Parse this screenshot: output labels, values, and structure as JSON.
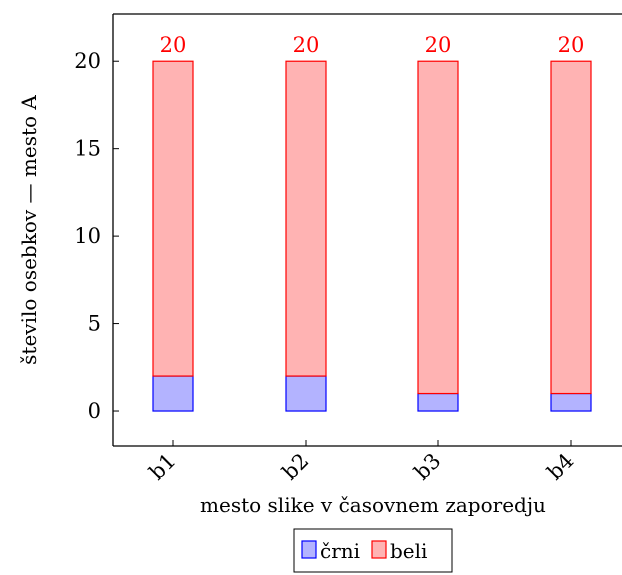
{
  "chart_data": {
    "type": "bar",
    "stacked": true,
    "categories": [
      "b1",
      "b2",
      "b3",
      "b4"
    ],
    "series": [
      {
        "name": "črni",
        "values": [
          2,
          2,
          1,
          1
        ],
        "color": "#0000ff",
        "fill": "#b3b3ff"
      },
      {
        "name": "beli",
        "values": [
          18,
          18,
          19,
          19
        ],
        "color": "#ff0000",
        "fill": "#ffb3b3"
      }
    ],
    "totals": [
      20,
      20,
      20,
      20
    ],
    "xlabel": "mesto slike v časovnem zaporedju",
    "ylabel": "število osebkov — mesto A",
    "ylim": [
      -2,
      22.7
    ],
    "yticks": [
      0,
      5,
      10,
      15,
      20
    ],
    "grid": false,
    "legend_position": "bottom-center"
  }
}
